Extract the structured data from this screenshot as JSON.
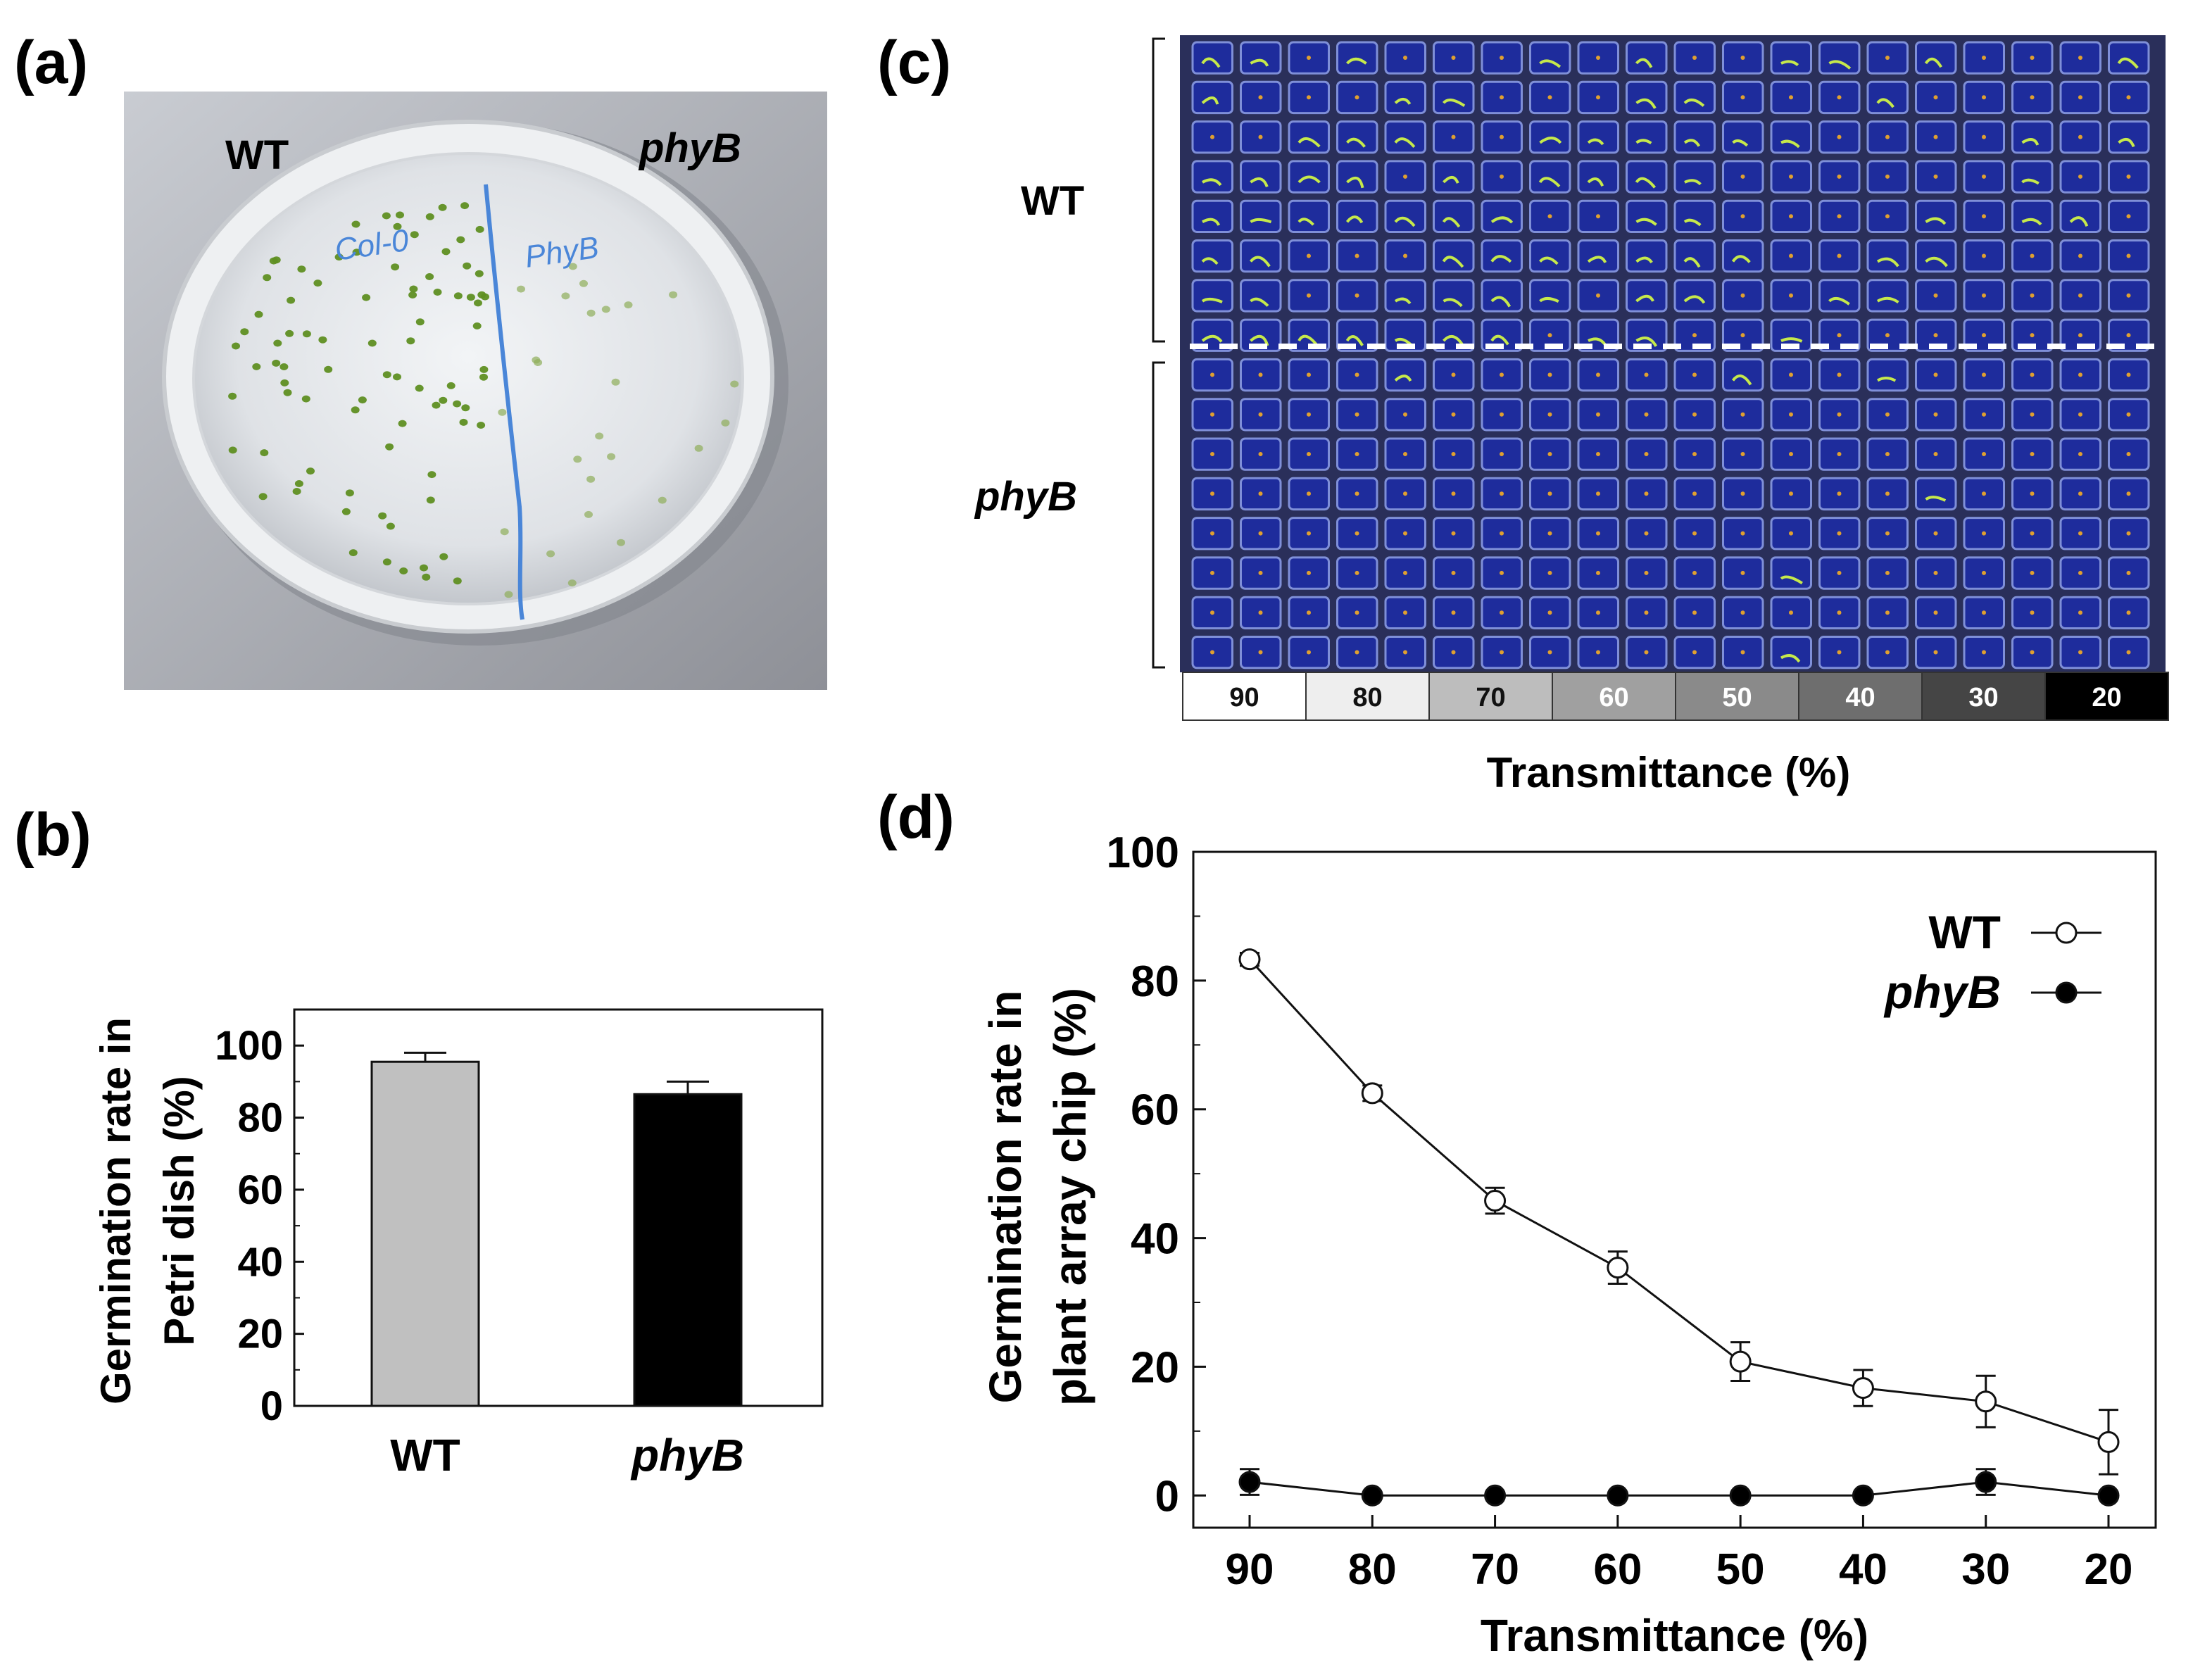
{
  "panels": {
    "a": {
      "label": "(a)",
      "left_text": "WT",
      "right_text": "phyB",
      "handwriting_left": "Col-0",
      "handwriting_right": "PhyB"
    },
    "b": {
      "label": "(b)"
    },
    "c": {
      "label": "(c)",
      "row_label_top": "WT",
      "row_label_bottom": "phyB",
      "transmittance_strip": [
        "90",
        "80",
        "70",
        "60",
        "50",
        "40",
        "30",
        "20"
      ],
      "strip_colors": [
        "#ffffff",
        "#eeeeee",
        "#bdbdbd",
        "#a0a0a0",
        "#8a8a8a",
        "#6e6e6e",
        "#454545",
        "#000000"
      ],
      "xlabel": "Transmittance (%)"
    },
    "d": {
      "label": "(d)"
    }
  },
  "colors": {
    "wt_bar": "#c0c0c0",
    "phyb_bar": "#000000",
    "chip_blue": "#1e2c9c",
    "seedling": "#c6e94b"
  },
  "chart_data": [
    {
      "id": "b",
      "type": "bar",
      "categories": [
        "WT",
        "phyB"
      ],
      "values": [
        95.5,
        86.5
      ],
      "errors": [
        2.5,
        3.5
      ],
      "ylabel_line1": "Germination rate in",
      "ylabel_line2": "Petri dish (%)",
      "ylim": [
        0,
        110
      ],
      "yticks": [
        0,
        20,
        40,
        60,
        80,
        100
      ],
      "ytick_labels": [
        "0",
        "20",
        "40",
        "60",
        "80",
        "100"
      ]
    },
    {
      "id": "d",
      "type": "line",
      "x": [
        90,
        80,
        70,
        60,
        50,
        40,
        30,
        20
      ],
      "xtick_labels": [
        "90",
        "80",
        "70",
        "60",
        "50",
        "40",
        "30",
        "20"
      ],
      "series": [
        {
          "name": "WT",
          "values": [
            83.3,
            62.5,
            45.8,
            35.4,
            20.8,
            16.7,
            14.6,
            8.3
          ],
          "errors": [
            1.0,
            1.2,
            2.0,
            2.5,
            3.0,
            2.8,
            4.0,
            5.0
          ],
          "marker": "open-circle"
        },
        {
          "name": "phyB",
          "values": [
            2.1,
            0,
            0,
            0,
            0,
            0,
            2.1,
            0
          ],
          "errors": [
            2.0,
            0,
            0,
            0,
            0,
            0,
            2.0,
            0
          ],
          "marker": "filled-circle"
        }
      ],
      "xlabel": "Transmittance (%)",
      "ylabel_line1": "Germination rate in",
      "ylabel_line2": "plant array chip (%)",
      "ylim": [
        -5,
        100
      ],
      "yticks": [
        0,
        20,
        40,
        60,
        80,
        100
      ],
      "ytick_labels": [
        "0",
        "20",
        "40",
        "60",
        "80",
        "100"
      ],
      "legend_position": "top-right"
    }
  ]
}
